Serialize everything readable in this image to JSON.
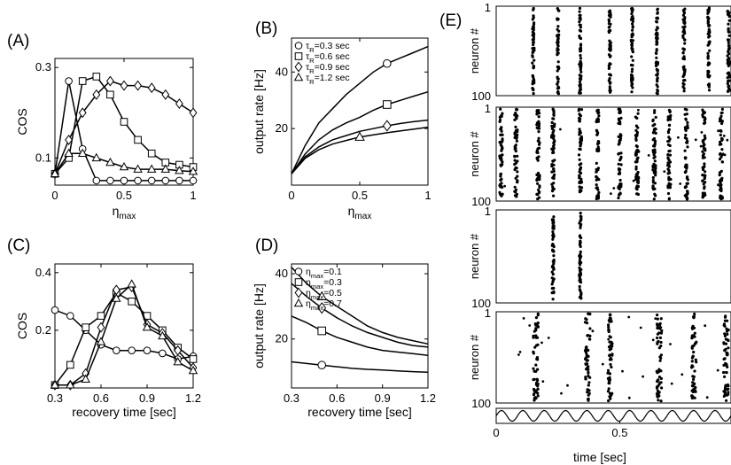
{
  "chart_data": [
    {
      "id": "A",
      "panel_label": "(A)",
      "type": "line",
      "xlabel": "η",
      "xlabel_sub": "max",
      "ylabel": "COS",
      "xlim": [
        0,
        1
      ],
      "ylim": [
        0.04,
        0.32
      ],
      "xticks": [
        0,
        0.5,
        1
      ],
      "xtick_labels": [
        "0",
        "0.5",
        "1"
      ],
      "yticks": [
        0.1,
        0.3
      ],
      "ytick_labels": [
        "0.1",
        "0.3"
      ],
      "x": [
        0,
        0.1,
        0.2,
        0.3,
        0.4,
        0.5,
        0.6,
        0.7,
        0.8,
        0.9,
        1.0
      ],
      "series": [
        {
          "marker": "circle",
          "values": [
            0.065,
            0.27,
            0.12,
            0.05,
            0.05,
            0.05,
            0.05,
            0.05,
            0.05,
            0.05,
            0.05
          ]
        },
        {
          "marker": "square",
          "values": [
            0.065,
            0.1,
            0.27,
            0.28,
            0.24,
            0.18,
            0.14,
            0.11,
            0.09,
            0.085,
            0.08
          ]
        },
        {
          "marker": "diamond",
          "values": [
            0.065,
            0.14,
            0.2,
            0.24,
            0.27,
            0.26,
            0.26,
            0.255,
            0.24,
            0.22,
            0.2
          ]
        },
        {
          "marker": "triangle",
          "values": [
            0.065,
            0.11,
            0.11,
            0.1,
            0.09,
            0.08,
            0.075,
            0.075,
            0.075,
            0.072,
            0.07
          ]
        }
      ]
    },
    {
      "id": "B",
      "panel_label": "(B)",
      "type": "line",
      "xlabel": "η",
      "xlabel_sub": "max",
      "ylabel": "output rate [Hz]",
      "xlim": [
        0,
        1
      ],
      "ylim": [
        0,
        52
      ],
      "xticks": [
        0,
        0.5,
        1
      ],
      "xtick_labels": [
        "0",
        "0.5",
        "1"
      ],
      "yticks": [
        20,
        40
      ],
      "ytick_labels": [
        "20",
        "40"
      ],
      "x": [
        0,
        0.1,
        0.2,
        0.3,
        0.4,
        0.5,
        0.6,
        0.7,
        0.8,
        0.9,
        1.0
      ],
      "legend": [
        {
          "marker": "circle",
          "pre": "τ",
          "sub": "R",
          "post": "=0.3 sec"
        },
        {
          "marker": "square",
          "pre": "τ",
          "sub": "R",
          "post": "=0.6 sec"
        },
        {
          "marker": "diamond",
          "pre": "τ",
          "sub": "R",
          "post": "=0.9 sec"
        },
        {
          "marker": "triangle",
          "pre": "τ",
          "sub": "R",
          "post": "=1.2 sec"
        }
      ],
      "series": [
        {
          "marker": "circle",
          "marker_at": 0.7,
          "values": [
            4,
            14,
            22,
            27,
            32,
            36,
            40,
            43,
            45,
            47,
            49
          ]
        },
        {
          "marker": "square",
          "marker_at": 0.7,
          "values": [
            4,
            11,
            16,
            19.5,
            22,
            24,
            26.5,
            28.5,
            30,
            31.5,
            33
          ]
        },
        {
          "marker": "diamond",
          "marker_at": 0.7,
          "values": [
            4,
            10,
            13.5,
            16,
            17.5,
            19,
            20,
            21,
            21.8,
            22.5,
            23
          ]
        },
        {
          "marker": "triangle",
          "marker_at": 0.5,
          "values": [
            4,
            9.5,
            12.5,
            14.5,
            15.8,
            17,
            17.8,
            18.5,
            19.2,
            19.8,
            20.5
          ]
        }
      ]
    },
    {
      "id": "C",
      "panel_label": "(C)",
      "type": "line",
      "xlabel": "recovery time [sec]",
      "ylabel": "COS",
      "xlim": [
        0.3,
        1.2
      ],
      "ylim": [
        0,
        0.43
      ],
      "xticks": [
        0.3,
        0.6,
        0.9,
        1.2
      ],
      "xtick_labels": [
        "0.3",
        "0.6",
        "0.9",
        "1.2"
      ],
      "yticks": [
        0.2,
        0.4
      ],
      "ytick_labels": [
        "0.2",
        "0.4"
      ],
      "x": [
        0.3,
        0.4,
        0.5,
        0.6,
        0.7,
        0.8,
        0.9,
        1.0,
        1.1,
        1.2
      ],
      "series": [
        {
          "marker": "circle",
          "values": [
            0.27,
            0.25,
            0.2,
            0.15,
            0.13,
            0.13,
            0.13,
            0.12,
            0.1,
            0.11
          ]
        },
        {
          "marker": "square",
          "values": [
            0.01,
            0.08,
            0.21,
            0.25,
            0.33,
            0.3,
            0.25,
            0.2,
            0.14,
            0.1
          ]
        },
        {
          "marker": "diamond",
          "values": [
            0.01,
            0.01,
            0.05,
            0.21,
            0.34,
            0.35,
            0.22,
            0.19,
            0.13,
            0.07
          ]
        },
        {
          "marker": "triangle",
          "values": [
            0.01,
            0.01,
            0.03,
            0.16,
            0.31,
            0.36,
            0.21,
            0.18,
            0.09,
            0.06
          ]
        }
      ]
    },
    {
      "id": "D",
      "panel_label": "(D)",
      "type": "line",
      "xlabel": "recovery time [sec]",
      "ylabel": "output rate [Hz]",
      "xlim": [
        0.3,
        1.2
      ],
      "ylim": [
        5,
        43
      ],
      "xticks": [
        0.3,
        0.6,
        0.9,
        1.2
      ],
      "xtick_labels": [
        "0.3",
        "0.6",
        "0.9",
        "1.2"
      ],
      "yticks": [
        20,
        40
      ],
      "ytick_labels": [
        "20",
        "40"
      ],
      "x": [
        0.3,
        0.4,
        0.5,
        0.6,
        0.7,
        0.8,
        0.9,
        1.0,
        1.1,
        1.2
      ],
      "legend": [
        {
          "marker": "circle",
          "pre": "η",
          "sub": "max",
          "post": "=0.1"
        },
        {
          "marker": "square",
          "pre": "η",
          "sub": "max",
          "post": "=0.3"
        },
        {
          "marker": "diamond",
          "pre": "η",
          "sub": "max",
          "post": "=0.5"
        },
        {
          "marker": "triangle",
          "pre": "η",
          "sub": "max",
          "post": "=0.7"
        }
      ],
      "series": [
        {
          "marker": "circle",
          "marker_at": 0.5,
          "values": [
            13,
            12.5,
            12,
            11.5,
            11,
            10.7,
            10.5,
            10.2,
            10,
            9.8
          ]
        },
        {
          "marker": "square",
          "marker_at": 0.5,
          "values": [
            27,
            25,
            22.5,
            20.5,
            19,
            17.5,
            16.5,
            16,
            15.5,
            15
          ]
        },
        {
          "marker": "diamond",
          "marker_at": 0.5,
          "values": [
            37,
            33,
            29.5,
            26.5,
            24,
            22,
            20.5,
            19,
            18,
            17.5
          ]
        },
        {
          "marker": "triangle",
          "marker_at": 0.5,
          "values": [
            42,
            37,
            33,
            30,
            27,
            24,
            22,
            20.5,
            19.5,
            18.5
          ]
        }
      ]
    }
  ],
  "panel_E": {
    "panel_label": "(E)",
    "type": "raster",
    "ylabel": "neuron #",
    "y_top_label": "1",
    "y_bottom_label": "100",
    "xlabel": "time [sec]",
    "xticks": [
      0,
      0.5
    ],
    "xtick_labels": [
      "0",
      "0.5"
    ],
    "xlim": [
      0,
      0.95
    ],
    "stimulus": "sinusoid",
    "stimulus_cycles": 11,
    "rasters": [
      {
        "bursts": [
          0.15,
          0.25,
          0.34,
          0.46,
          0.55,
          0.65,
          0.76,
          0.86,
          0.94
        ],
        "background_spikes": 0,
        "width": 0.008
      },
      {
        "bursts": [
          0.02,
          0.08,
          0.17,
          0.23,
          0.34,
          0.41,
          0.5,
          0.57,
          0.64,
          0.7,
          0.77,
          0.84,
          0.91
        ],
        "background_spikes": 20,
        "width": 0.012
      },
      {
        "bursts": [
          0.23,
          0.34
        ],
        "background_spikes": 0,
        "width": 0.008
      },
      {
        "bursts": [
          0.16,
          0.37,
          0.46,
          0.66,
          0.8,
          0.93
        ],
        "background_spikes": 28,
        "width": 0.02
      }
    ]
  }
}
